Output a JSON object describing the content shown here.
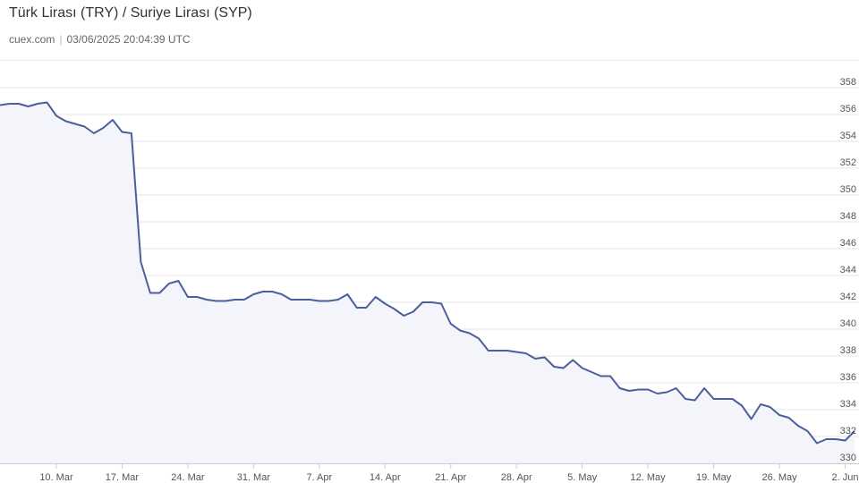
{
  "header": {
    "title": "Türk Lirası (TRY) / Suriye Lirası (SYP)",
    "source": "cuex.com",
    "separator": "|",
    "timestamp": "03/06/2025 20:04:39 UTC"
  },
  "chart_data": {
    "type": "area",
    "title": "Türk Lirası (TRY) / Suriye Lirası (SYP)",
    "xlabel": "",
    "ylabel": "",
    "ylim": [
      330,
      358
    ],
    "yticks": [
      330,
      332,
      334,
      336,
      338,
      340,
      342,
      344,
      346,
      348,
      350,
      352,
      354,
      356,
      358
    ],
    "xlim": [
      "2025-03-04",
      "2025-06-03"
    ],
    "xticks": [
      {
        "date": "2025-03-10",
        "label": "10. Mar"
      },
      {
        "date": "2025-03-17",
        "label": "17. Mar"
      },
      {
        "date": "2025-03-24",
        "label": "24. Mar"
      },
      {
        "date": "2025-03-31",
        "label": "31. Mar"
      },
      {
        "date": "2025-04-07",
        "label": "7. Apr"
      },
      {
        "date": "2025-04-14",
        "label": "14. Apr"
      },
      {
        "date": "2025-04-21",
        "label": "21. Apr"
      },
      {
        "date": "2025-04-28",
        "label": "28. Apr"
      },
      {
        "date": "2025-05-05",
        "label": "5. May"
      },
      {
        "date": "2025-05-12",
        "label": "12. May"
      },
      {
        "date": "2025-05-19",
        "label": "19. May"
      },
      {
        "date": "2025-05-26",
        "label": "26. May"
      },
      {
        "date": "2025-06-02",
        "label": "2. Jun"
      }
    ],
    "grid": true,
    "colors": {
      "line": "#4a5f9c",
      "fill": "#f4f5fa",
      "grid": "#e6e6e6"
    },
    "series": [
      {
        "points": [
          [
            "2025-03-04",
            356.7
          ],
          [
            "2025-03-05",
            356.8
          ],
          [
            "2025-03-06",
            356.8
          ],
          [
            "2025-03-07",
            356.6
          ],
          [
            "2025-03-08",
            356.8
          ],
          [
            "2025-03-09",
            356.9
          ],
          [
            "2025-03-10",
            355.9
          ],
          [
            "2025-03-11",
            355.5
          ],
          [
            "2025-03-12",
            355.3
          ],
          [
            "2025-03-13",
            355.1
          ],
          [
            "2025-03-14",
            354.6
          ],
          [
            "2025-03-15",
            355.0
          ],
          [
            "2025-03-16",
            355.6
          ],
          [
            "2025-03-17",
            354.7
          ],
          [
            "2025-03-18",
            354.6
          ],
          [
            "2025-03-19",
            345.0
          ],
          [
            "2025-03-20",
            342.7
          ],
          [
            "2025-03-21",
            342.7
          ],
          [
            "2025-03-22",
            343.4
          ],
          [
            "2025-03-23",
            343.6
          ],
          [
            "2025-03-24",
            342.4
          ],
          [
            "2025-03-25",
            342.4
          ],
          [
            "2025-03-26",
            342.2
          ],
          [
            "2025-03-27",
            342.1
          ],
          [
            "2025-03-28",
            342.1
          ],
          [
            "2025-03-29",
            342.2
          ],
          [
            "2025-03-30",
            342.2
          ],
          [
            "2025-03-31",
            342.6
          ],
          [
            "2025-04-01",
            342.8
          ],
          [
            "2025-04-02",
            342.8
          ],
          [
            "2025-04-03",
            342.6
          ],
          [
            "2025-04-04",
            342.2
          ],
          [
            "2025-04-05",
            342.2
          ],
          [
            "2025-04-06",
            342.2
          ],
          [
            "2025-04-07",
            342.1
          ],
          [
            "2025-04-08",
            342.1
          ],
          [
            "2025-04-09",
            342.2
          ],
          [
            "2025-04-10",
            342.6
          ],
          [
            "2025-04-11",
            341.6
          ],
          [
            "2025-04-12",
            341.6
          ],
          [
            "2025-04-13",
            342.4
          ],
          [
            "2025-04-14",
            341.9
          ],
          [
            "2025-04-15",
            341.5
          ],
          [
            "2025-04-16",
            341.0
          ],
          [
            "2025-04-17",
            341.3
          ],
          [
            "2025-04-18",
            342.0
          ],
          [
            "2025-04-19",
            342.0
          ],
          [
            "2025-04-20",
            341.9
          ],
          [
            "2025-04-21",
            340.4
          ],
          [
            "2025-04-22",
            339.9
          ],
          [
            "2025-04-23",
            339.7
          ],
          [
            "2025-04-24",
            339.3
          ],
          [
            "2025-04-25",
            338.4
          ],
          [
            "2025-04-26",
            338.4
          ],
          [
            "2025-04-27",
            338.4
          ],
          [
            "2025-04-28",
            338.3
          ],
          [
            "2025-04-29",
            338.2
          ],
          [
            "2025-04-30",
            337.8
          ],
          [
            "2025-05-01",
            337.9
          ],
          [
            "2025-05-02",
            337.2
          ],
          [
            "2025-05-03",
            337.1
          ],
          [
            "2025-05-04",
            337.7
          ],
          [
            "2025-05-05",
            337.1
          ],
          [
            "2025-05-06",
            336.8
          ],
          [
            "2025-05-07",
            336.5
          ],
          [
            "2025-05-08",
            336.5
          ],
          [
            "2025-05-09",
            335.6
          ],
          [
            "2025-05-10",
            335.4
          ],
          [
            "2025-05-11",
            335.5
          ],
          [
            "2025-05-12",
            335.5
          ],
          [
            "2025-05-13",
            335.2
          ],
          [
            "2025-05-14",
            335.3
          ],
          [
            "2025-05-15",
            335.6
          ],
          [
            "2025-05-16",
            334.8
          ],
          [
            "2025-05-17",
            334.7
          ],
          [
            "2025-05-18",
            335.6
          ],
          [
            "2025-05-19",
            334.8
          ],
          [
            "2025-05-20",
            334.8
          ],
          [
            "2025-05-21",
            334.8
          ],
          [
            "2025-05-22",
            334.3
          ],
          [
            "2025-05-23",
            333.3
          ],
          [
            "2025-05-24",
            334.4
          ],
          [
            "2025-05-25",
            334.2
          ],
          [
            "2025-05-26",
            333.6
          ],
          [
            "2025-05-27",
            333.4
          ],
          [
            "2025-05-28",
            332.8
          ],
          [
            "2025-05-29",
            332.4
          ],
          [
            "2025-05-30",
            331.5
          ],
          [
            "2025-05-31",
            331.8
          ],
          [
            "2025-06-01",
            331.8
          ],
          [
            "2025-06-02",
            331.7
          ],
          [
            "2025-06-03",
            332.4
          ]
        ]
      }
    ]
  }
}
